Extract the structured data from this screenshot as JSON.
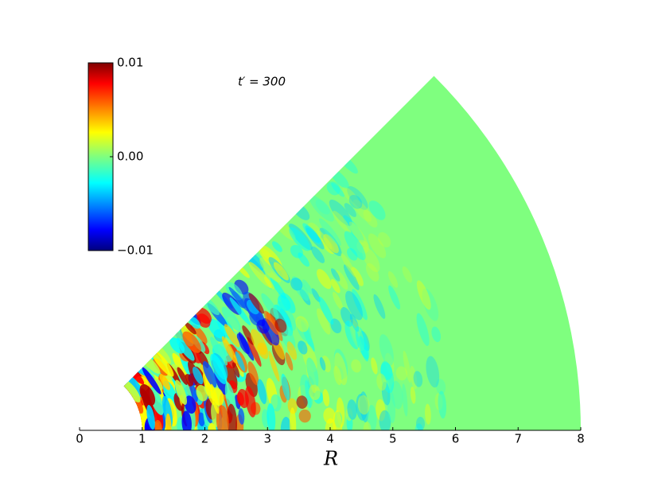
{
  "chart_data": {
    "type": "polar-wedge",
    "annotation": "t′ = 300",
    "xlabel": "R",
    "xlim": [
      0,
      8
    ],
    "xticks": [
      0,
      1,
      2,
      3,
      4,
      5,
      6,
      7,
      8
    ],
    "rlim": [
      1,
      8
    ],
    "thetalim": [
      0,
      45
    ],
    "background_color": "#7fff7f",
    "colorbar": {
      "colormap": "jet",
      "lim": [
        -0.01,
        0.01
      ],
      "ticks": [
        0.01,
        {
          "value": 0,
          "label": "0.00"
        },
        {
          "value": -0.01,
          "label": "−0.01"
        }
      ]
    }
  }
}
